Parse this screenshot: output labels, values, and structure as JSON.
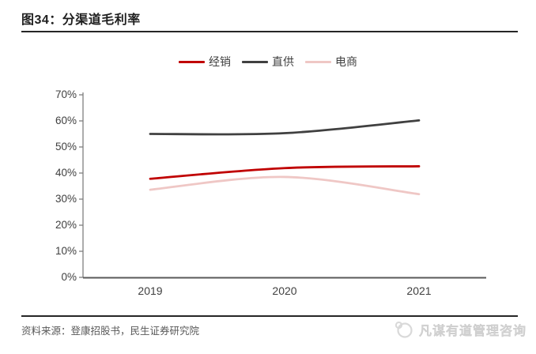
{
  "figure": {
    "title": "图34：分渠道毛利率",
    "source": "资料来源：登康招股书，民生证券研究院",
    "watermark": "凡谋有道管理咨询"
  },
  "colors": {
    "series_red": "#c00000",
    "series_dark": "#404040",
    "series_pink": "#efc7c5",
    "axis_line": "#7f7f7f",
    "x_axis_line": "#595959",
    "rule_dark": "#262626",
    "watermark_gray": "#d9d9d9"
  },
  "chart_data": {
    "type": "line",
    "title": "",
    "xlabel": "",
    "ylabel": "",
    "x": [
      "2019",
      "2020",
      "2021"
    ],
    "series": [
      {
        "name": "经销",
        "color": "#c00000",
        "values": [
          37.8,
          41.9,
          42.6
        ]
      },
      {
        "name": "直供",
        "color": "#404040",
        "values": [
          55.0,
          55.3,
          60.2
        ]
      },
      {
        "name": "电商",
        "color": "#efc7c5",
        "values": [
          33.6,
          38.5,
          31.9
        ]
      }
    ],
    "ylim": [
      0,
      70
    ],
    "ytick_step": 10,
    "yticks": [
      "0%",
      "10%",
      "20%",
      "30%",
      "40%",
      "50%",
      "60%",
      "70%"
    ],
    "xticks": [
      "2019",
      "2020",
      "2021"
    ],
    "legend_position": "top-center",
    "grid": false,
    "smooth": true,
    "markers": false
  }
}
